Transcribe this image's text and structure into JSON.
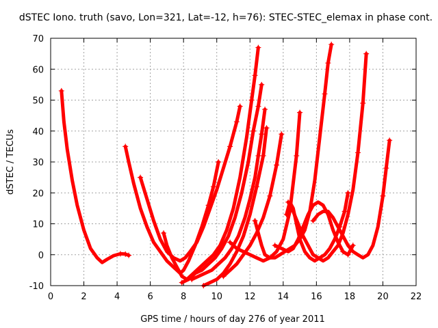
{
  "chart_data": {
    "type": "line",
    "title": "dSTEC Iono. truth (savo, Lon=321, Lat=-12, h=76): STEC-STEC_elemax in phase cont.",
    "xlabel": "GPS time / hours of day 276 of year 2011",
    "ylabel": "dSTEC  / TECUs",
    "xlim": [
      0,
      22
    ],
    "ylim": [
      -10,
      70
    ],
    "xticks": [
      0,
      2,
      4,
      6,
      8,
      10,
      12,
      14,
      16,
      18,
      20,
      22
    ],
    "yticks": [
      -10,
      0,
      10,
      20,
      30,
      40,
      50,
      60,
      70
    ],
    "grid": true,
    "legend": "none",
    "color": "#ff0000",
    "series": [
      {
        "x": [
          0.65,
          0.8,
          1.0,
          1.3,
          1.6,
          2.0,
          2.4,
          2.8,
          3.1,
          3.4,
          3.8,
          4.2,
          4.5,
          4.7
        ],
        "y": [
          53,
          43,
          34,
          24,
          16,
          8,
          2,
          -1,
          -2.5,
          -1.5,
          -0.3,
          0.3,
          0.2,
          -0.2
        ]
      },
      {
        "x": [
          4.5,
          4.7,
          5.0,
          5.4,
          5.8,
          6.2,
          6.6,
          7.0,
          7.4,
          7.8,
          8.0,
          8.3,
          8.7,
          9.1,
          9.5,
          9.8,
          10.1
        ],
        "y": [
          35,
          30,
          23,
          15,
          9,
          4,
          1,
          -2,
          -4,
          -6,
          -5,
          -2,
          3,
          9,
          16,
          22,
          30
        ]
      },
      {
        "x": [
          5.4,
          5.8,
          6.2,
          6.6,
          7.0,
          7.4,
          7.8,
          8.1,
          8.4,
          8.8,
          9.2,
          9.6,
          10.0,
          10.4,
          10.8,
          11.2,
          11.4
        ],
        "y": [
          25,
          18,
          11,
          5,
          1,
          -1,
          -2,
          -1,
          1,
          4,
          9,
          15,
          21,
          28,
          35,
          43,
          48
        ]
      },
      {
        "x": [
          6.8,
          7.0,
          7.3,
          7.6,
          7.9,
          8.2,
          8.6,
          9.0,
          9.4,
          9.8,
          10.2,
          10.6,
          11.0,
          11.4,
          11.8,
          12.1,
          12.3,
          12.5
        ],
        "y": [
          7,
          3,
          -1,
          -4,
          -7,
          -8,
          -6,
          -4,
          -2,
          0,
          3,
          8,
          15,
          25,
          38,
          50,
          58,
          67
        ]
      },
      {
        "x": [
          7.9,
          8.3,
          8.7,
          9.1,
          9.5,
          9.9,
          10.3,
          10.7,
          11.1,
          11.5,
          11.9,
          12.2,
          12.5,
          12.7
        ],
        "y": [
          -9,
          -8,
          -6,
          -5,
          -3,
          -1,
          2,
          6,
          12,
          20,
          30,
          40,
          48,
          55
        ]
      },
      {
        "x": [
          8.5,
          8.9,
          9.3,
          9.7,
          10.1,
          10.5,
          10.9,
          11.3,
          11.7,
          12.0,
          12.3,
          12.5,
          12.7,
          12.9
        ],
        "y": [
          -8,
          -7,
          -6,
          -5,
          -3,
          -1,
          2,
          6,
          12,
          18,
          25,
          32,
          39,
          47
        ]
      },
      {
        "x": [
          9.2,
          9.6,
          10.0,
          10.4,
          10.8,
          11.2,
          11.6,
          12.0,
          12.4,
          12.8,
          13.0
        ],
        "y": [
          -10,
          -9,
          -8,
          -6,
          -3,
          1,
          6,
          13,
          22,
          32,
          41
        ]
      },
      {
        "x": [
          10.4,
          10.8,
          11.2,
          11.6,
          12.0,
          12.4,
          12.8,
          13.2,
          13.6,
          13.9
        ],
        "y": [
          -7,
          -5,
          -3,
          0,
          3,
          7,
          12,
          19,
          29,
          39
        ]
      },
      {
        "x": [
          10.8,
          11.2,
          11.6,
          12.0,
          12.4,
          12.8,
          13.2,
          13.6,
          14.0,
          14.4,
          14.8,
          15.0
        ],
        "y": [
          4,
          2,
          1,
          0,
          -1,
          -2,
          -1,
          1,
          5,
          14,
          32,
          46
        ]
      },
      {
        "x": [
          12.3,
          12.5,
          12.7,
          12.9,
          13.2,
          13.5,
          13.8,
          14.1,
          14.4,
          14.7,
          15.0,
          15.3,
          15.6,
          15.9,
          16.2,
          16.5,
          16.7,
          16.9
        ],
        "y": [
          11,
          7,
          3,
          0,
          -1,
          -1,
          0,
          1,
          2,
          3,
          5,
          8,
          14,
          24,
          38,
          52,
          62,
          68
        ]
      },
      {
        "x": [
          13.5,
          13.9,
          14.3,
          14.6,
          14.9,
          15.2,
          15.5,
          15.8,
          16.1,
          16.4,
          16.7,
          17.0,
          17.3,
          17.6,
          17.9,
          18.2
        ],
        "y": [
          3,
          2,
          1,
          2,
          5,
          9,
          13,
          16,
          17,
          16,
          13,
          8,
          4,
          1,
          0,
          3
        ]
      },
      {
        "x": [
          14.2,
          14.4,
          14.6,
          14.8,
          15.0,
          15.3,
          15.6,
          15.9,
          16.2,
          16.5,
          16.8,
          17.1,
          17.4,
          17.7,
          17.9
        ],
        "y": [
          13,
          17,
          15,
          10,
          5,
          1,
          -1,
          -2,
          -1,
          0,
          2,
          5,
          9,
          14,
          20
        ]
      },
      {
        "x": [
          14.3,
          14.6,
          14.9,
          15.2,
          15.5,
          15.8,
          16.1,
          16.4,
          16.7,
          17.0,
          17.3,
          17.6,
          17.9,
          18.2,
          18.5,
          18.8,
          19.0
        ],
        "y": [
          17,
          14,
          10,
          6,
          3,
          0,
          -1,
          -2,
          -1,
          1,
          3,
          7,
          13,
          21,
          33,
          49,
          65
        ]
      },
      {
        "x": [
          15.8,
          16.1,
          16.4,
          16.7,
          17.0,
          17.3,
          17.6,
          17.9,
          18.2,
          18.5,
          18.8,
          19.1,
          19.4,
          19.7,
          20.0,
          20.2,
          20.4
        ],
        "y": [
          11,
          13,
          14,
          14,
          12,
          9,
          6,
          3,
          1,
          0,
          -1,
          0,
          3,
          9,
          19,
          28,
          37
        ]
      }
    ]
  }
}
